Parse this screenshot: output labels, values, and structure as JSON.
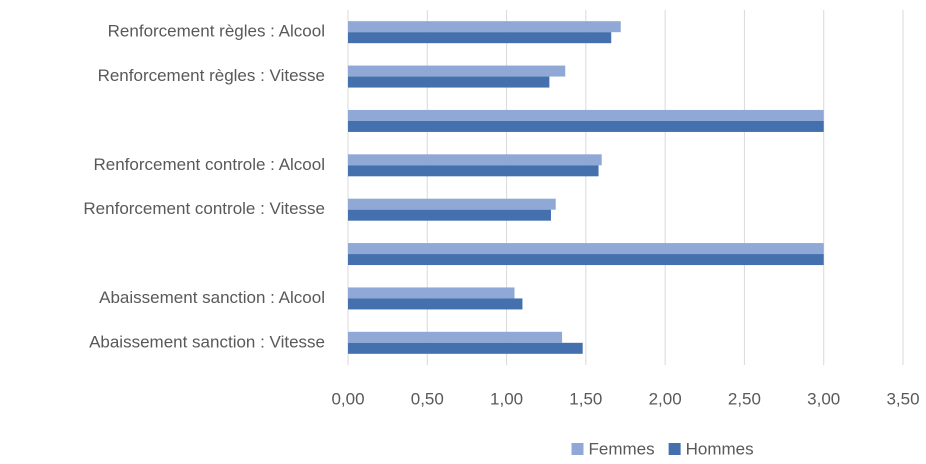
{
  "chart_data": {
    "type": "hbar",
    "categories": [
      "Renforcement règles : Alcool",
      "Renforcement règles : Vitesse",
      null,
      "Renforcement controle : Alcool",
      "Renforcement controle : Vitesse",
      null,
      "Abaissement sanction : Alcool",
      "Abaissement sanction : Vitesse"
    ],
    "series": [
      {
        "name": "Femmes",
        "color": "#8fa8d6",
        "values": [
          1.72,
          1.37,
          3.0,
          1.6,
          1.31,
          3.0,
          1.05,
          1.35
        ]
      },
      {
        "name": "Hommes",
        "color": "#4470ad",
        "values": [
          1.66,
          1.27,
          3.0,
          1.58,
          1.28,
          3.0,
          1.1,
          1.48
        ]
      }
    ],
    "xlim": [
      0,
      3.5
    ],
    "xticks": [
      {
        "value": 0,
        "label": "0,00"
      },
      {
        "value": 0.5,
        "label": "0,50"
      },
      {
        "value": 1,
        "label": "1,00"
      },
      {
        "value": 1.5,
        "label": "1,50"
      },
      {
        "value": 2,
        "label": "2,00"
      },
      {
        "value": 2.5,
        "label": "2,50"
      },
      {
        "value": 3,
        "label": "3,00"
      },
      {
        "value": 3.5,
        "label": "3,50"
      }
    ],
    "grid": true,
    "legend": "bottom"
  }
}
